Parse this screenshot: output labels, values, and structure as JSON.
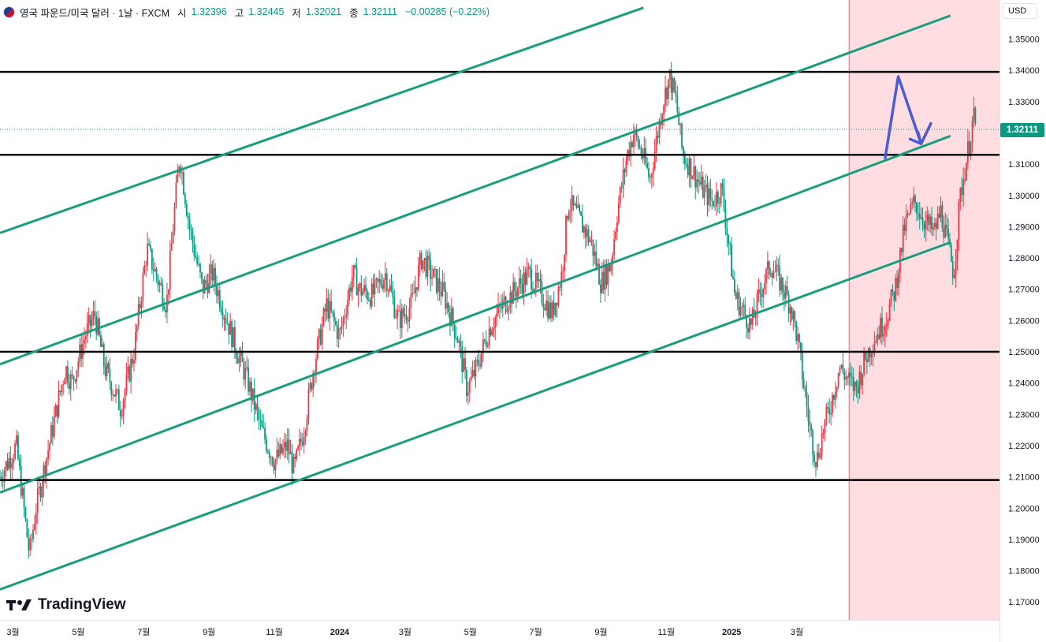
{
  "legend": {
    "symbol": "영국 파운드/미국 달러 · 1날 · FXCM",
    "open_label": "시",
    "open": "1.32396",
    "high_label": "고",
    "high": "1.32445",
    "low_label": "저",
    "low": "1.32021",
    "close_label": "종",
    "close": "1.32111",
    "change": "−0.00285 (−0.22%)"
  },
  "currency_button": "USD",
  "watermark": "TradingView",
  "colors": {
    "up": "#f23645",
    "down": "#089981",
    "channel": "#1a9c7e",
    "horizontal": "#000000",
    "arrow": "#4a5bd8",
    "zone": "#ffdde0",
    "zone_edge": "#f28b95"
  },
  "chart_data": {
    "type": "candlestick",
    "ylim": [
      1.165,
      1.355
    ],
    "current_price": 1.32111,
    "current_price_label": "1.32111",
    "y_ticks": [
      1.17,
      1.18,
      1.19,
      1.2,
      1.21,
      1.22,
      1.23,
      1.24,
      1.25,
      1.26,
      1.27,
      1.28,
      1.29,
      1.3,
      1.31,
      1.32,
      1.33,
      1.34,
      1.35
    ],
    "y_tick_labels": [
      "1.17000",
      "1.18000",
      "1.19000",
      "1.20000",
      "1.21000",
      "1.22000",
      "1.23000",
      "1.24000",
      "1.25000",
      "1.26000",
      "1.27000",
      "1.28000",
      "1.29000",
      "1.30000",
      "1.31000",
      "1.32000",
      "1.33000",
      "1.34000",
      "1.35000"
    ],
    "x_ticks": [
      {
        "label": "3월",
        "month": 2.5
      },
      {
        "label": "5월",
        "month": 4.5
      },
      {
        "label": "7월",
        "month": 6.5
      },
      {
        "label": "9월",
        "month": 8.5
      },
      {
        "label": "11월",
        "month": 10.5
      },
      {
        "label": "2024",
        "month": 12.5
      },
      {
        "label": "3월",
        "month": 14.5
      },
      {
        "label": "5월",
        "month": 16.5
      },
      {
        "label": "7월",
        "month": 18.5
      },
      {
        "label": "9월",
        "month": 20.5
      },
      {
        "label": "11월",
        "month": 22.5
      },
      {
        "label": "2025",
        "month": 24.5
      },
      {
        "label": "3월",
        "month": 26.5
      }
    ],
    "horizontal_levels": [
      1.3395,
      1.313,
      1.25,
      1.209
    ],
    "channel_lines": [
      {
        "start": [
          2.1,
          1.288
        ],
        "end": [
          21.8,
          1.36
        ]
      },
      {
        "start": [
          2.1,
          1.246
        ],
        "end": [
          31.2,
          1.3575
        ]
      },
      {
        "start": [
          2.1,
          1.205
        ],
        "end": [
          31.2,
          1.319
        ]
      },
      {
        "start": [
          2.1,
          1.174
        ],
        "end": [
          31.2,
          1.285
        ]
      }
    ],
    "zone_start_month": 28.1,
    "projection_arrow": [
      [
        29.2,
        1.312
      ],
      [
        29.6,
        1.338
      ],
      [
        30.3,
        1.3165
      ],
      [
        30.6,
        1.323
      ]
    ],
    "price_path": [
      [
        2.1,
        1.21
      ],
      [
        2.6,
        1.22
      ],
      [
        3.0,
        1.185
      ],
      [
        3.2,
        1.2
      ],
      [
        3.6,
        1.22
      ],
      [
        4.1,
        1.245
      ],
      [
        4.3,
        1.24
      ],
      [
        4.7,
        1.255
      ],
      [
        5.0,
        1.262
      ],
      [
        5.3,
        1.245
      ],
      [
        5.8,
        1.232
      ],
      [
        6.2,
        1.25
      ],
      [
        6.6,
        1.283
      ],
      [
        7.2,
        1.265
      ],
      [
        7.4,
        1.29
      ],
      [
        7.6,
        1.313
      ],
      [
        7.9,
        1.29
      ],
      [
        8.3,
        1.27
      ],
      [
        8.6,
        1.275
      ],
      [
        8.9,
        1.265
      ],
      [
        9.3,
        1.252
      ],
      [
        9.7,
        1.24
      ],
      [
        10.1,
        1.225
      ],
      [
        10.5,
        1.215
      ],
      [
        10.9,
        1.22
      ],
      [
        11.1,
        1.212
      ],
      [
        11.4,
        1.225
      ],
      [
        11.7,
        1.245
      ],
      [
        12.1,
        1.265
      ],
      [
        12.3,
        1.26
      ],
      [
        12.5,
        1.255
      ],
      [
        12.9,
        1.275
      ],
      [
        13.1,
        1.27
      ],
      [
        13.5,
        1.268
      ],
      [
        13.9,
        1.275
      ],
      [
        14.3,
        1.26
      ],
      [
        14.7,
        1.265
      ],
      [
        15.0,
        1.28
      ],
      [
        15.3,
        1.275
      ],
      [
        15.7,
        1.268
      ],
      [
        16.1,
        1.255
      ],
      [
        16.4,
        1.238
      ],
      [
        16.7,
        1.245
      ],
      [
        17.1,
        1.258
      ],
      [
        17.5,
        1.265
      ],
      [
        17.9,
        1.27
      ],
      [
        18.3,
        1.275
      ],
      [
        18.7,
        1.268
      ],
      [
        19.0,
        1.262
      ],
      [
        19.3,
        1.275
      ],
      [
        19.5,
        1.298
      ],
      [
        19.8,
        1.293
      ],
      [
        20.2,
        1.285
      ],
      [
        20.5,
        1.272
      ],
      [
        20.8,
        1.278
      ],
      [
        21.0,
        1.295
      ],
      [
        21.3,
        1.313
      ],
      [
        21.5,
        1.32
      ],
      [
        21.8,
        1.312
      ],
      [
        22.0,
        1.305
      ],
      [
        22.2,
        1.318
      ],
      [
        22.4,
        1.33
      ],
      [
        22.6,
        1.338
      ],
      [
        22.8,
        1.33
      ],
      [
        23.0,
        1.313
      ],
      [
        23.3,
        1.308
      ],
      [
        23.6,
        1.302
      ],
      [
        23.9,
        1.298
      ],
      [
        24.2,
        1.302
      ],
      [
        24.4,
        1.285
      ],
      [
        24.6,
        1.268
      ],
      [
        24.9,
        1.262
      ],
      [
        25.1,
        1.258
      ],
      [
        25.4,
        1.27
      ],
      [
        25.7,
        1.278
      ],
      [
        26.0,
        1.272
      ],
      [
        26.3,
        1.265
      ],
      [
        26.5,
        1.255
      ],
      [
        26.7,
        1.24
      ],
      [
        26.9,
        1.225
      ],
      [
        27.1,
        1.215
      ],
      [
        27.3,
        1.225
      ],
      [
        27.5,
        1.232
      ],
      [
        27.8,
        1.245
      ],
      [
        28.0,
        1.242
      ],
      [
        28.3,
        1.238
      ],
      [
        28.6,
        1.248
      ],
      [
        28.9,
        1.255
      ],
      [
        29.2,
        1.26
      ],
      [
        29.5,
        1.27
      ],
      [
        29.8,
        1.29
      ],
      [
        30.1,
        1.298
      ],
      [
        30.4,
        1.292
      ],
      [
        30.7,
        1.288
      ],
      [
        30.9,
        1.295
      ],
      [
        31.1,
        1.285
      ],
      [
        31.3,
        1.275
      ],
      [
        31.5,
        1.3
      ],
      [
        31.7,
        1.312
      ],
      [
        31.9,
        1.325
      ],
      [
        32.0,
        1.321
      ]
    ]
  }
}
